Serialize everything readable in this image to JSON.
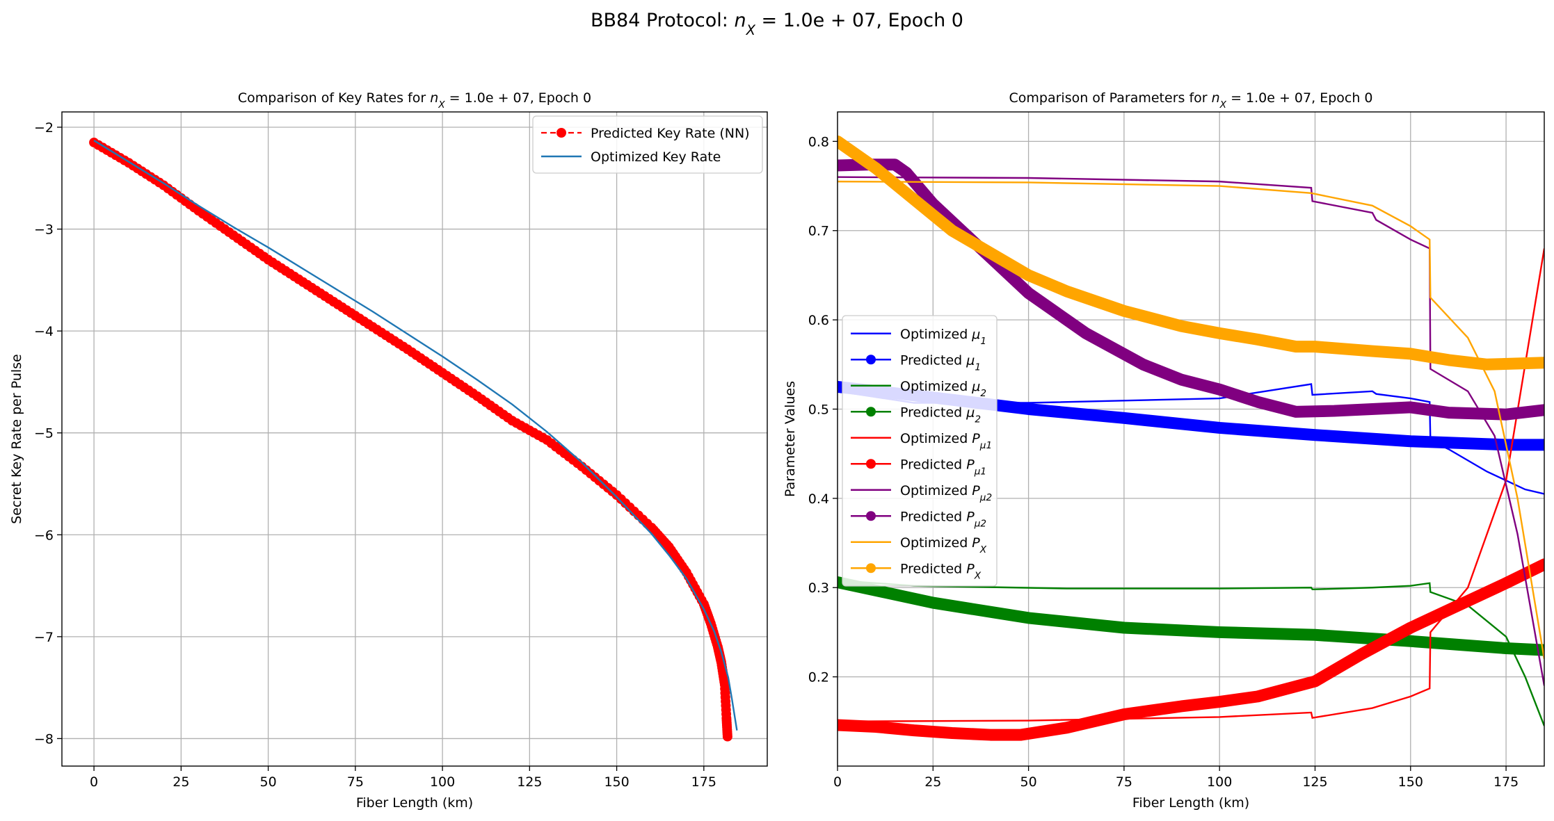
{
  "figure": {
    "suptitle": "BB84 Protocol: n_X = 1.0e + 07, Epoch 0"
  },
  "chart_data": [
    {
      "type": "line",
      "title": "Comparison of Key Rates for n_X = 1.0e + 07, Epoch 0",
      "xlabel": "Fiber Length (km)",
      "ylabel": "Secret Key Rate per Pulse",
      "xlim": [
        -9.2,
        193.2
      ],
      "ylim": [
        -8.27,
        -1.85
      ],
      "xticks": [
        0,
        25,
        50,
        75,
        100,
        125,
        150,
        175
      ],
      "yticks": [
        -8,
        -7,
        -6,
        -5,
        -4,
        -3,
        -2
      ],
      "ytick_labels": [
        "−8",
        "−7",
        "−6",
        "−5",
        "−4",
        "−3",
        "−2"
      ],
      "grid": true,
      "legend": "upper right",
      "series": [
        {
          "name": "Predicted Key Rate (NN)",
          "color": "#ff0000",
          "style": "dashed-markers",
          "x": [
            0,
            10,
            20,
            30,
            40,
            50,
            60,
            70,
            80,
            90,
            100,
            110,
            120,
            130,
            140,
            150,
            160,
            165,
            170,
            175,
            177,
            179,
            180,
            181,
            181.5,
            181.8
          ],
          "y": [
            -2.15,
            -2.35,
            -2.57,
            -2.82,
            -3.06,
            -3.3,
            -3.52,
            -3.74,
            -3.96,
            -4.18,
            -4.41,
            -4.64,
            -4.88,
            -5.07,
            -5.33,
            -5.61,
            -5.93,
            -6.12,
            -6.37,
            -6.68,
            -6.87,
            -7.1,
            -7.25,
            -7.47,
            -7.8,
            -7.98
          ]
        },
        {
          "name": "Optimized Key Rate",
          "color": "#1f77b4",
          "style": "solid",
          "x": [
            0,
            10,
            20,
            30,
            40,
            50,
            60,
            70,
            80,
            90,
            100,
            110,
            120,
            130,
            140,
            150,
            160,
            165,
            170,
            175,
            178,
            180,
            182,
            183,
            184.5
          ],
          "y": [
            -2.13,
            -2.34,
            -2.55,
            -2.77,
            -2.98,
            -3.18,
            -3.39,
            -3.6,
            -3.81,
            -4.03,
            -4.25,
            -4.48,
            -4.72,
            -4.99,
            -5.29,
            -5.63,
            -5.99,
            -6.2,
            -6.43,
            -6.73,
            -6.95,
            -7.15,
            -7.4,
            -7.6,
            -7.92
          ]
        }
      ]
    },
    {
      "type": "line",
      "title": "Comparison of Parameters for n_X = 1.0e + 07, Epoch 0",
      "xlabel": "Fiber Length (km)",
      "ylabel": "Parameter Values",
      "xlim": [
        0,
        185
      ],
      "ylim": [
        0.1,
        0.833
      ],
      "xticks": [
        0,
        25,
        50,
        75,
        100,
        125,
        150,
        175
      ],
      "yticks": [
        0.2,
        0.3,
        0.4,
        0.5,
        0.6,
        0.7,
        0.8
      ],
      "grid": true,
      "legend": "center left",
      "series": [
        {
          "name": "Optimized μ1",
          "sub": "1",
          "base": "μ",
          "kind": "optimized",
          "color": "#0000ff",
          "x": [
            0,
            20,
            50,
            100,
            124,
            124.3,
            140,
            141,
            150,
            155,
            155.2,
            160,
            170,
            180,
            185
          ],
          "y": [
            0.52,
            0.507,
            0.507,
            0.512,
            0.528,
            0.516,
            0.52,
            0.517,
            0.512,
            0.508,
            0.465,
            0.455,
            0.43,
            0.41,
            0.405
          ]
        },
        {
          "name": "Predicted μ1",
          "sub": "1",
          "base": "μ",
          "kind": "predicted",
          "color": "#0000ff",
          "x": [
            0,
            25,
            50,
            75,
            100,
            125,
            150,
            175,
            185
          ],
          "y": [
            0.525,
            0.513,
            0.5,
            0.49,
            0.479,
            0.471,
            0.464,
            0.46,
            0.46
          ]
        },
        {
          "name": "Optimized μ2",
          "sub": "2",
          "base": "μ",
          "kind": "optimized",
          "color": "#008000",
          "x": [
            0,
            20,
            60,
            100,
            124,
            124.3,
            140,
            150,
            155,
            155.2,
            165,
            175,
            180,
            185
          ],
          "y": [
            0.308,
            0.302,
            0.299,
            0.299,
            0.3,
            0.298,
            0.3,
            0.302,
            0.305,
            0.295,
            0.28,
            0.245,
            0.2,
            0.145
          ]
        },
        {
          "name": "Predicted μ2",
          "sub": "2",
          "base": "μ",
          "kind": "predicted",
          "color": "#008000",
          "x": [
            0,
            25,
            50,
            75,
            100,
            125,
            150,
            175,
            185
          ],
          "y": [
            0.306,
            0.283,
            0.266,
            0.255,
            0.25,
            0.247,
            0.24,
            0.232,
            0.23
          ]
        },
        {
          "name": "Optimized Pμ1",
          "sub": "μ1",
          "base": "P",
          "kind": "optimized",
          "color": "#ff0000",
          "x": [
            0,
            50,
            100,
            124,
            124.3,
            140,
            150,
            155,
            155.2,
            165,
            175,
            180,
            185
          ],
          "y": [
            0.15,
            0.151,
            0.155,
            0.16,
            0.154,
            0.165,
            0.178,
            0.187,
            0.25,
            0.3,
            0.42,
            0.55,
            0.68
          ]
        },
        {
          "name": "Predicted Pμ1",
          "sub": "μ1",
          "base": "P",
          "kind": "predicted",
          "color": "#ff0000",
          "x": [
            0,
            10,
            20,
            30,
            40,
            48,
            60,
            75,
            90,
            100,
            110,
            125,
            137,
            150,
            160,
            175,
            185
          ],
          "y": [
            0.146,
            0.144,
            0.14,
            0.137,
            0.135,
            0.135,
            0.143,
            0.158,
            0.167,
            0.172,
            0.178,
            0.195,
            0.225,
            0.255,
            0.275,
            0.305,
            0.326
          ]
        },
        {
          "name": "Optimized Pμ2",
          "sub": "μ2",
          "base": "P",
          "kind": "optimized",
          "color": "#800080",
          "x": [
            0,
            50,
            100,
            124,
            124.3,
            140,
            141,
            150,
            155,
            155.2,
            165,
            172,
            178,
            185
          ],
          "y": [
            0.76,
            0.759,
            0.755,
            0.748,
            0.733,
            0.72,
            0.712,
            0.69,
            0.68,
            0.545,
            0.52,
            0.47,
            0.36,
            0.19
          ]
        },
        {
          "name": "Predicted Pμ2",
          "sub": "μ2",
          "base": "P",
          "kind": "predicted",
          "color": "#800080",
          "x": [
            0,
            8,
            15,
            18,
            25,
            35,
            50,
            65,
            80,
            90,
            100,
            110,
            120,
            130,
            150,
            160,
            175,
            185
          ],
          "y": [
            0.773,
            0.774,
            0.774,
            0.765,
            0.73,
            0.69,
            0.63,
            0.585,
            0.55,
            0.533,
            0.522,
            0.508,
            0.497,
            0.498,
            0.502,
            0.496,
            0.494,
            0.499
          ]
        },
        {
          "name": "Optimized PX",
          "sub": "X",
          "base": "P",
          "kind": "optimized",
          "color": "#ffa500",
          "x": [
            0,
            50,
            100,
            124,
            140,
            150,
            155,
            155.2,
            165,
            172,
            178,
            185
          ],
          "y": [
            0.755,
            0.754,
            0.75,
            0.742,
            0.728,
            0.705,
            0.69,
            0.625,
            0.58,
            0.52,
            0.4,
            0.22
          ]
        },
        {
          "name": "Predicted PX",
          "sub": "X",
          "base": "P",
          "kind": "predicted",
          "color": "#ffa500",
          "x": [
            0,
            10,
            20,
            30,
            40,
            50,
            60,
            75,
            90,
            100,
            110,
            120,
            125,
            140,
            150,
            160,
            170,
            185
          ],
          "y": [
            0.8,
            0.77,
            0.735,
            0.7,
            0.675,
            0.65,
            0.632,
            0.61,
            0.593,
            0.585,
            0.578,
            0.57,
            0.57,
            0.565,
            0.562,
            0.555,
            0.55,
            0.552
          ]
        }
      ]
    }
  ]
}
